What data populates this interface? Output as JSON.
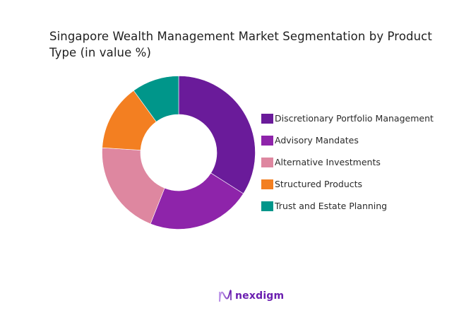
{
  "chart_data": {
    "type": "pie",
    "subtype": "donut",
    "title": "Singapore Wealth Management Market Segmentation by Product Type (in value %)",
    "categories": [
      "Discretionary Portfolio Management",
      "Advisory Mandates",
      "Alternative Investments",
      "Structured Products",
      "Trust and Estate Planning"
    ],
    "values": [
      34,
      22,
      20,
      14,
      10
    ],
    "colors": [
      "#6A1B9A",
      "#8E24AA",
      "#DE87A0",
      "#F37F21",
      "#00968A"
    ],
    "legend_position": "right",
    "data_labels": false
  },
  "header": {
    "title": "Singapore Wealth Management Market Segmentation by Product Type (in value %)"
  },
  "legend": {
    "items": [
      {
        "label": "Discretionary Portfolio Management",
        "color": "#6A1B9A"
      },
      {
        "label": "Advisory Mandates",
        "color": "#8E24AA"
      },
      {
        "label": "Alternative Investments",
        "color": "#DE87A0"
      },
      {
        "label": "Structured Products",
        "color": "#F37F21"
      },
      {
        "label": "Trust and Estate Planning",
        "color": "#00968A"
      }
    ]
  },
  "footer": {
    "brand": "nexdigm",
    "brand_color": "#6B1FB0"
  }
}
